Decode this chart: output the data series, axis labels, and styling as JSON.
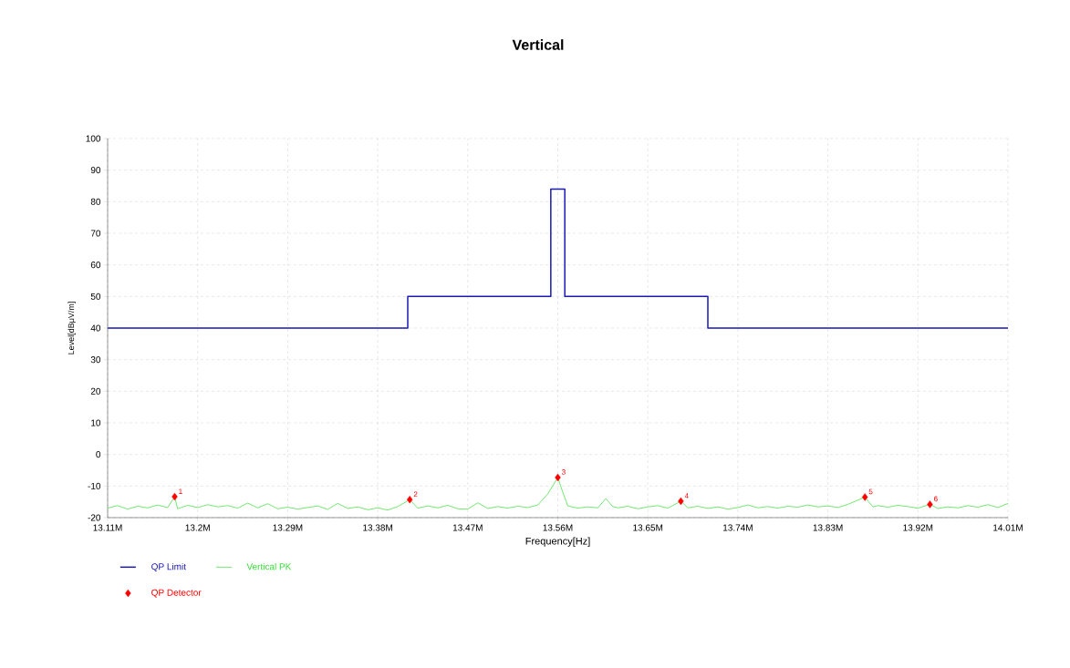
{
  "chart_data": {
    "type": "line",
    "title": "Vertical",
    "xlabel": "Frequency[Hz]",
    "ylabel": "Level[dBμV/m]",
    "xlim": [
      13110000,
      14010000
    ],
    "xticks": [
      {
        "value": 13110000,
        "label": "13.11M"
      },
      {
        "value": 13200000,
        "label": "13.2M"
      },
      {
        "value": 13290000,
        "label": "13.29M"
      },
      {
        "value": 13380000,
        "label": "13.38M"
      },
      {
        "value": 13470000,
        "label": "13.47M"
      },
      {
        "value": 13560000,
        "label": "13.56M"
      },
      {
        "value": 13650000,
        "label": "13.65M"
      },
      {
        "value": 13740000,
        "label": "13.74M"
      },
      {
        "value": 13830000,
        "label": "13.83M"
      },
      {
        "value": 13920000,
        "label": "13.92M"
      },
      {
        "value": 14010000,
        "label": "14.01M"
      }
    ],
    "ylim": [
      -20,
      100
    ],
    "yticks": [
      -20,
      -10,
      0,
      10,
      20,
      30,
      40,
      50,
      60,
      70,
      80,
      90,
      100
    ],
    "grid": true,
    "legend": "bottom left",
    "series": [
      {
        "name": "QP Limit",
        "type": "line",
        "color": "#1a1ab4",
        "x": [
          13110000,
          13410000,
          13410000,
          13553000,
          13553000,
          13567000,
          13567000,
          13710000,
          13710000,
          14010000
        ],
        "values": [
          40,
          40,
          50,
          50,
          84,
          84,
          50,
          50,
          40,
          40
        ]
      },
      {
        "name": "Vertical PK",
        "type": "line",
        "color": "#33dd33",
        "x": [
          13110000,
          13120000,
          13130000,
          13140000,
          13150000,
          13160000,
          13170000,
          13177000,
          13180000,
          13190000,
          13200000,
          13210000,
          13220000,
          13230000,
          13240000,
          13250000,
          13260000,
          13270000,
          13280000,
          13290000,
          13300000,
          13310000,
          13320000,
          13330000,
          13340000,
          13350000,
          13360000,
          13370000,
          13380000,
          13390000,
          13400000,
          13412000,
          13420000,
          13430000,
          13440000,
          13450000,
          13460000,
          13470000,
          13480000,
          13490000,
          13500000,
          13510000,
          13520000,
          13530000,
          13540000,
          13550000,
          13560000,
          13565000,
          13570000,
          13580000,
          13590000,
          13600000,
          13608000,
          13615000,
          13620000,
          13630000,
          13640000,
          13650000,
          13660000,
          13670000,
          13683000,
          13690000,
          13700000,
          13710000,
          13720000,
          13730000,
          13740000,
          13750000,
          13760000,
          13770000,
          13780000,
          13790000,
          13800000,
          13810000,
          13820000,
          13830000,
          13840000,
          13850000,
          13867000,
          13875000,
          13880000,
          13890000,
          13900000,
          13910000,
          13920000,
          13932000,
          13940000,
          13950000,
          13960000,
          13970000,
          13980000,
          13990000,
          14000000,
          14010000
        ],
        "values": [
          -17.0,
          -16.2,
          -17.3,
          -16.4,
          -16.9,
          -16.0,
          -16.8,
          -13.4,
          -17.2,
          -16.1,
          -16.8,
          -15.9,
          -16.6,
          -16.2,
          -17.0,
          -15.4,
          -16.9,
          -15.6,
          -17.2,
          -16.7,
          -17.3,
          -16.8,
          -16.3,
          -17.4,
          -15.5,
          -17.1,
          -16.6,
          -17.5,
          -16.9,
          -17.6,
          -16.5,
          -14.3,
          -17.0,
          -16.3,
          -16.9,
          -16.1,
          -17.2,
          -17.3,
          -15.3,
          -17.1,
          -16.5,
          -17.0,
          -16.4,
          -16.8,
          -16.0,
          -12.5,
          -7.3,
          -12.0,
          -16.3,
          -17.0,
          -16.6,
          -16.9,
          -14.0,
          -16.5,
          -16.9,
          -16.4,
          -17.2,
          -16.6,
          -16.2,
          -17.0,
          -14.8,
          -16.9,
          -16.4,
          -17.1,
          -16.6,
          -17.3,
          -16.8,
          -16.0,
          -16.9,
          -16.5,
          -17.0,
          -16.4,
          -16.7,
          -16.0,
          -16.6,
          -16.3,
          -16.8,
          -15.8,
          -13.5,
          -16.6,
          -16.2,
          -16.7,
          -16.1,
          -16.5,
          -17.0,
          -15.8,
          -17.1,
          -16.6,
          -16.9,
          -16.2,
          -16.7,
          -15.9,
          -16.8,
          -15.5
        ]
      },
      {
        "name": "QP Detector",
        "type": "scatter",
        "marker": "diamond",
        "color": "#ff0000",
        "x": [
          13177000,
          13412000,
          13560000,
          13683000,
          13867000,
          13932000
        ],
        "values": [
          -13.4,
          -14.3,
          -7.3,
          -14.8,
          -13.5,
          -15.8
        ]
      }
    ],
    "annotations": [
      {
        "text": "1",
        "x": 13177000,
        "y": -13.4
      },
      {
        "text": "2",
        "x": 13412000,
        "y": -14.3
      },
      {
        "text": "3",
        "x": 13560000,
        "y": -7.3
      },
      {
        "text": "4",
        "x": 13683000,
        "y": -14.8
      },
      {
        "text": "5",
        "x": 13867000,
        "y": -13.5
      },
      {
        "text": "6",
        "x": 13932000,
        "y": -15.8
      }
    ]
  }
}
